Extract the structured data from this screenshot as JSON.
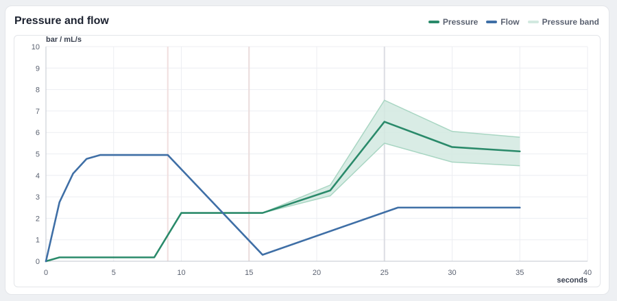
{
  "panel": {
    "title": "Pressure and flow"
  },
  "legend": [
    {
      "label": "Pressure",
      "color": "#2a8a6a"
    },
    {
      "label": "Flow",
      "color": "#3f6fa6"
    },
    {
      "label": "Pressure band",
      "color": "#d2e9e0"
    }
  ],
  "chart_data": {
    "type": "line",
    "title": "Pressure and flow",
    "xlabel": "seconds",
    "ylabel": "bar / mL/s",
    "xlim": [
      0,
      40
    ],
    "ylim": [
      0,
      10
    ],
    "xticks": [
      0,
      5,
      10,
      15,
      20,
      25,
      30,
      35,
      40
    ],
    "yticks": [
      0,
      1,
      2,
      3,
      4,
      5,
      6,
      7,
      8,
      9,
      10
    ],
    "grid": true,
    "legend_position": "top-right",
    "phase_markers_x": [
      9,
      15,
      25
    ],
    "series": [
      {
        "name": "Pressure",
        "color": "#2a8a6a",
        "x": [
          0,
          1,
          8,
          10,
          16,
          21,
          25,
          30,
          35
        ],
        "y": [
          0,
          0.18,
          0.18,
          2.25,
          2.25,
          3.3,
          6.5,
          5.32,
          5.12
        ]
      },
      {
        "name": "Flow",
        "color": "#3f6fa6",
        "x": [
          0,
          1,
          2,
          3,
          4,
          9,
          16,
          26,
          35
        ],
        "y": [
          0,
          2.75,
          4.08,
          4.77,
          4.95,
          4.95,
          0.3,
          2.5,
          2.5
        ]
      }
    ],
    "band": {
      "name": "Pressure band",
      "color": "#d2e9e0",
      "stroke": "#a9d6c3",
      "x": [
        16,
        21,
        25,
        30,
        35
      ],
      "upper": [
        2.25,
        3.55,
        7.5,
        6.05,
        5.78
      ],
      "lower": [
        2.25,
        3.05,
        5.5,
        4.62,
        4.45
      ]
    }
  }
}
